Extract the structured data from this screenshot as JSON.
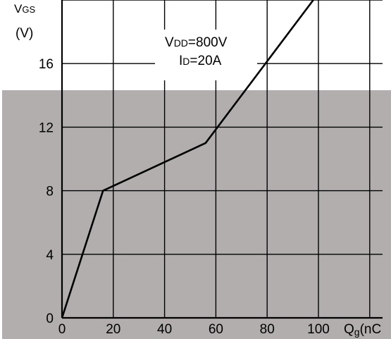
{
  "chart_data": {
    "type": "line",
    "title": "",
    "ylabel": {
      "main": "V",
      "sub": "GS",
      "unit": "(V)"
    },
    "xlabel": {
      "main": "Q",
      "sub": "g",
      "unit": "(nC"
    },
    "xlim": [
      0,
      125
    ],
    "ylim": [
      0,
      20
    ],
    "x_ticks": [
      0,
      20,
      40,
      60,
      80,
      100
    ],
    "y_ticks": [
      0,
      4,
      8,
      12,
      16
    ],
    "grid": true,
    "annotation": {
      "line1": {
        "main": "V",
        "sub": "DD",
        "rest": "=800V"
      },
      "line2": {
        "main": "I",
        "sub": "D",
        "rest": "=20A"
      }
    },
    "series": [
      {
        "name": "",
        "x": [
          0,
          16,
          56,
          77,
          98
        ],
        "y": [
          0,
          8,
          11,
          15.5,
          20
        ]
      }
    ],
    "colors": {
      "overlay": "#b2aeae",
      "line": "#000000",
      "grid": "#000000",
      "background": "#ffffff"
    }
  }
}
